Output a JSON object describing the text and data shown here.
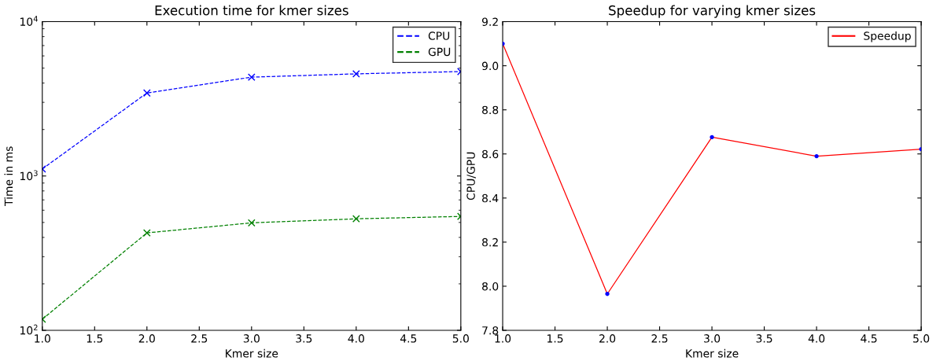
{
  "chart_data": [
    {
      "type": "line",
      "title": "Execution time for kmer sizes",
      "xlabel": "Kmer size",
      "ylabel": "Time in ms",
      "x": [
        1,
        2,
        3,
        4,
        5
      ],
      "series": [
        {
          "name": "CPU",
          "color": "#0000ff",
          "values": [
            1110,
            3450,
            4370,
            4590,
            4750
          ]
        },
        {
          "name": "GPU",
          "color": "#008000",
          "values": [
            118,
            428,
            497,
            528,
            547
          ]
        }
      ],
      "log": "y",
      "xlim": [
        1.0,
        5.0
      ],
      "xticks": [
        {
          "value": 1,
          "label": "1.0"
        },
        1.5,
        {
          "value": 2,
          "label": "2.0"
        },
        2.5,
        {
          "value": 3,
          "label": "3.0"
        },
        3.5,
        {
          "value": 4,
          "label": "4.0"
        },
        4.5,
        {
          "value": 5,
          "label": "5.0"
        }
      ],
      "ylim": [
        100,
        10000
      ],
      "yticks": [
        {
          "value": 100,
          "label": "10$^{2}$"
        },
        {
          "value": 1000,
          "label": "10$^{3}$"
        },
        {
          "value": 10000,
          "label": "10$^{4}$"
        }
      ],
      "marker": "cross",
      "line_style": "dashed",
      "legend": "top right",
      "grid": false
    },
    {
      "type": "line",
      "title": "Speedup for varying kmer sizes",
      "xlabel": "Kmer size",
      "ylabel": "CPU/GPU",
      "x": [
        1,
        2,
        3,
        4,
        5
      ],
      "series": [
        {
          "name": "Speedup",
          "color": "#ff0000",
          "values": [
            9.1,
            7.965,
            8.676,
            8.59,
            8.622
          ]
        },
        {
          "type": "scatter",
          "color": "#0000ff",
          "values": [
            9.1,
            7.965,
            8.676,
            8.59,
            8.622
          ]
        }
      ],
      "xlim": [
        1.0,
        5.0
      ],
      "xticks": [
        {
          "value": 1,
          "label": "1.0"
        },
        1.5,
        {
          "value": 2,
          "label": "2.0"
        },
        2.5,
        {
          "value": 3,
          "label": "3.0"
        },
        3.5,
        {
          "value": 4,
          "label": "4.0"
        },
        4.5,
        {
          "value": 5,
          "label": "5.0"
        }
      ],
      "ylim": [
        7.8,
        9.2
      ],
      "yticks": [
        7.8,
        {
          "value": 8,
          "label": "8.0"
        },
        8.2,
        8.4,
        8.6,
        8.8,
        {
          "value": 9,
          "label": "9.0"
        },
        9.2
      ],
      "marker": "none",
      "line_style": "solid",
      "legend": "top right",
      "grid": false
    }
  ]
}
